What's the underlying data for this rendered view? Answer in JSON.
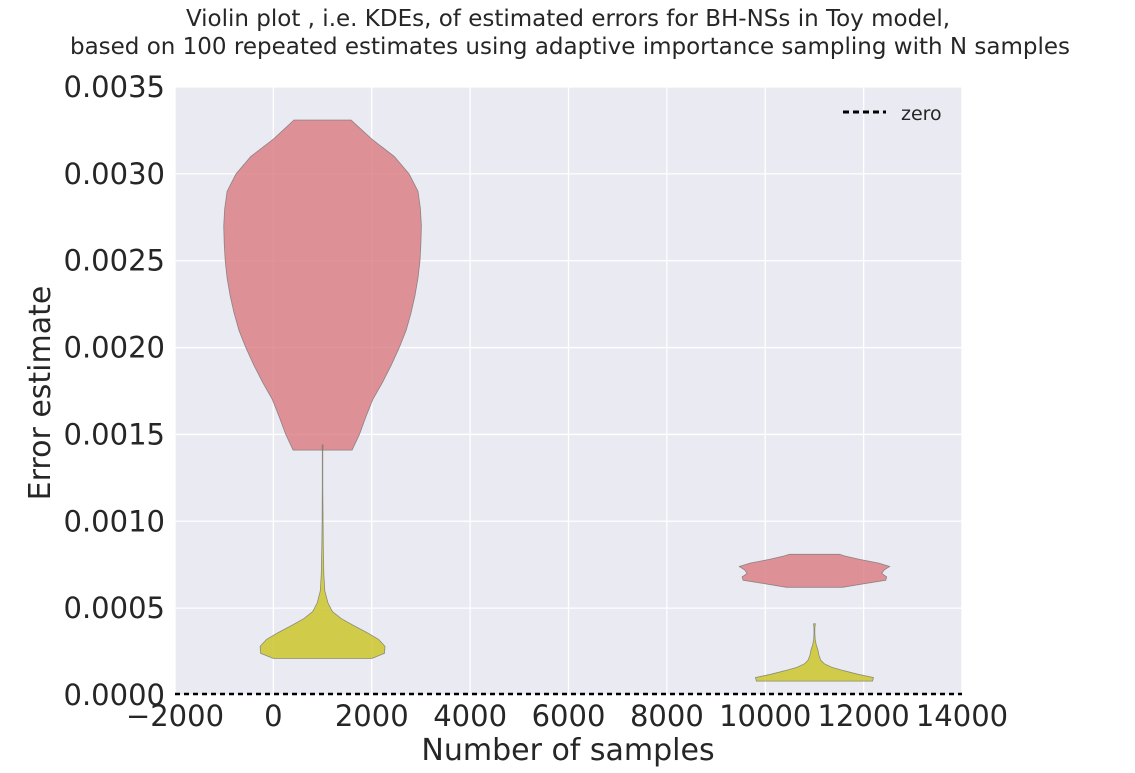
{
  "chart_data": {
    "type": "violin",
    "title": [
      "Violin plot , i.e. KDEs, of estimated errors for BH-NSs  in Toy model,",
      "based on 100 repeated estimates using adaptive importance sampling  with N samples"
    ],
    "xlabel": "Number of samples",
    "ylabel": "Error estimate",
    "xlim": [
      -2000,
      14000
    ],
    "ylim": [
      0.0,
      0.0035
    ],
    "xticks": [
      -2000,
      0,
      2000,
      4000,
      6000,
      8000,
      10000,
      12000,
      14000
    ],
    "xtick_labels": [
      "−2000",
      "0",
      "2000",
      "4000",
      "6000",
      "8000",
      "10000",
      "12000",
      "14000"
    ],
    "yticks": [
      0.0,
      0.0005,
      0.001,
      0.0015,
      0.002,
      0.0025,
      0.003,
      0.0035
    ],
    "ytick_labels": [
      "0.0000",
      "0.0005",
      "0.0010",
      "0.0015",
      "0.0020",
      "0.0025",
      "0.0030",
      "0.0035"
    ],
    "grid": true,
    "legend": {
      "placement": "top-right",
      "entries": [
        {
          "label": "zero",
          "style": "dashed",
          "color": "#000000"
        }
      ]
    },
    "reference_line": {
      "y": 0.0,
      "style": "dashed",
      "color": "#000000"
    },
    "series": [
      {
        "color": "#d97b7f",
        "violins": [
          {
            "x": 1000,
            "profile": [
              [
                0.00141,
                600
              ],
              [
                0.0015,
                750
              ],
              [
                0.0016,
                880
              ],
              [
                0.0017,
                1020
              ],
              [
                0.0018,
                1220
              ],
              [
                0.0019,
                1400
              ],
              [
                0.002,
                1560
              ],
              [
                0.0021,
                1700
              ],
              [
                0.0022,
                1800
              ],
              [
                0.0023,
                1880
              ],
              [
                0.0024,
                1940
              ],
              [
                0.0025,
                1980
              ],
              [
                0.0026,
                2000
              ],
              [
                0.0027,
                2010
              ],
              [
                0.0028,
                1990
              ],
              [
                0.0029,
                1940
              ],
              [
                0.003,
                1760
              ],
              [
                0.0031,
                1460
              ],
              [
                0.0032,
                1000
              ],
              [
                0.00331,
                580
              ]
            ]
          },
          {
            "x": 11000,
            "profile": [
              [
                0.00062,
                570
              ],
              [
                0.00064,
                1000
              ],
              [
                0.00066,
                1450
              ],
              [
                0.00068,
                1470
              ],
              [
                0.0007,
                1370
              ],
              [
                0.00072,
                1420
              ],
              [
                0.00074,
                1530
              ],
              [
                0.00076,
                1300
              ],
              [
                0.00078,
                930
              ],
              [
                0.0008,
                620
              ],
              [
                0.00081,
                510
              ]
            ]
          }
        ]
      },
      {
        "color": "#c9c41f",
        "violins": [
          {
            "x": 1000,
            "profile": [
              [
                0.00021,
                1000
              ],
              [
                0.00024,
                1260
              ],
              [
                0.00028,
                1270
              ],
              [
                0.00032,
                1140
              ],
              [
                0.00036,
                900
              ],
              [
                0.0004,
                630
              ],
              [
                0.00044,
                380
              ],
              [
                0.00048,
                200
              ],
              [
                0.00053,
                110
              ],
              [
                0.0006,
                45
              ],
              [
                0.0007,
                25
              ],
              [
                0.00085,
                15
              ],
              [
                0.001,
                10
              ],
              [
                0.0012,
                5
              ],
              [
                0.0014,
                5
              ],
              [
                0.00144,
                10
              ]
            ]
          },
          {
            "x": 11000,
            "profile": [
              [
                8e-05,
                1180
              ],
              [
                0.0001,
                1200
              ],
              [
                0.00012,
                880
              ],
              [
                0.00014,
                600
              ],
              [
                0.00016,
                350
              ],
              [
                0.00018,
                200
              ],
              [
                0.0002,
                130
              ],
              [
                0.00023,
                90
              ],
              [
                0.00026,
                70
              ],
              [
                0.00029,
                35
              ],
              [
                0.00032,
                15
              ],
              [
                0.00036,
                8
              ],
              [
                0.00039,
                10
              ],
              [
                0.00041,
                20
              ]
            ]
          }
        ]
      }
    ]
  }
}
